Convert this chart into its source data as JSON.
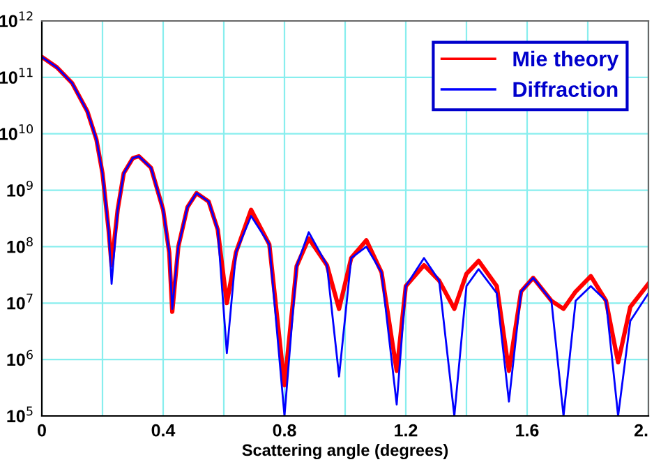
{
  "chart_data": {
    "type": "line",
    "xlabel": "Scattering angle (degrees)",
    "log": "y",
    "grid": true,
    "legend": "top right",
    "marker": "none",
    "line_style": "solid",
    "x": [
      0,
      0.05,
      0.1,
      0.15,
      0.18,
      0.2,
      0.22,
      0.23,
      0.25,
      0.27,
      0.3,
      0.32,
      0.36,
      0.4,
      0.42,
      0.43,
      0.45,
      0.48,
      0.51,
      0.55,
      0.58,
      0.61,
      0.64,
      0.69,
      0.75,
      0.8,
      0.84,
      0.88,
      0.94,
      0.98,
      1.02,
      1.07,
      1.12,
      1.17,
      1.2,
      1.26,
      1.31,
      1.36,
      1.4,
      1.44,
      1.5,
      1.54,
      1.58,
      1.62,
      1.68,
      1.72,
      1.76,
      1.81,
      1.86,
      1.9,
      1.94,
      2.0
    ],
    "series": [
      {
        "name": "Mie theory",
        "color": "#ff0000",
        "values": [
          230000000000.0,
          150000000000.0,
          79000000000.0,
          25000000000.0,
          7900000000.0,
          2000000000.0,
          200000000.0,
          47000000.0,
          450000000.0,
          2000000000.0,
          3700000000.0,
          4000000000.0,
          2500000000.0,
          450000000.0,
          79000000.0,
          7000000.0,
          100000000.0,
          500000000.0,
          890000000.0,
          630000000.0,
          200000000.0,
          10000000.0,
          79000000.0,
          450000000.0,
          110000000.0,
          350000.0,
          45000000.0,
          140000000.0,
          47000000.0,
          7900000.0,
          63000000.0,
          130000000.0,
          35000000.0,
          630000.0,
          20000000.0,
          47000000.0,
          25000000.0,
          7900000.0,
          33000000.0,
          56000000.0,
          20000000.0,
          630000.0,
          16000000.0,
          28000000.0,
          11000000.0,
          7900000.0,
          16000000.0,
          30000000.0,
          11000000.0,
          890000.0,
          8500000.0,
          22000000.0
        ]
      },
      {
        "name": "Diffraction",
        "color": "#0000ff",
        "values": [
          230000000000.0,
          150000000000.0,
          79000000000.0,
          25000000000.0,
          7900000000.0,
          2000000000.0,
          200000000.0,
          22000000.0,
          450000000.0,
          2000000000.0,
          3700000000.0,
          4000000000.0,
          2500000000.0,
          450000000.0,
          79000000.0,
          7900000.0,
          100000000.0,
          500000000.0,
          890000000.0,
          630000000.0,
          200000000.0,
          1300000.0,
          79000000.0,
          350000000.0,
          110000000.0,
          100000.0,
          45000000.0,
          180000000.0,
          47000000.0,
          500000.0,
          63000000.0,
          100000000.0,
          35000000.0,
          160000.0,
          20000000.0,
          63000000.0,
          25000000.0,
          100000.0,
          20000000.0,
          40000000.0,
          15000000.0,
          180000.0,
          16000000.0,
          28000000.0,
          11000000.0,
          100000.0,
          11000000.0,
          20000000.0,
          11000000.0,
          100000.0,
          4800000.0,
          15000000.0
        ]
      }
    ],
    "xlim": [
      0,
      2.0
    ],
    "ylim": [
      100000.0,
      1000000000000.0
    ],
    "xticks": [
      0,
      {
        "value": 0.2,
        "label": null
      },
      0.4,
      {
        "value": 0.6,
        "label": null
      },
      0.8,
      {
        "value": 1.0,
        "label": null
      },
      1.2,
      {
        "value": 1.4,
        "label": null
      },
      1.6,
      {
        "value": 1.8,
        "label": null
      },
      {
        "value": 2.0,
        "label": "2."
      }
    ],
    "yticks": [
      {
        "value": 100000.0,
        "label": "10$^{5}$"
      },
      {
        "value": 1000000.0,
        "label": "10$^{6}$"
      },
      {
        "value": 10000000.0,
        "label": "10$^{7}$"
      },
      {
        "value": 100000000.0,
        "label": "10$^{8}$"
      },
      {
        "value": 1000000000.0,
        "label": "10$^{9}$"
      },
      {
        "value": 10000000000.0,
        "label": "10$^{10}$"
      },
      {
        "value": 100000000000.0,
        "label": "10$^{11}$"
      },
      {
        "value": 1000000000000.0,
        "label": "10$^{12}$"
      }
    ]
  }
}
